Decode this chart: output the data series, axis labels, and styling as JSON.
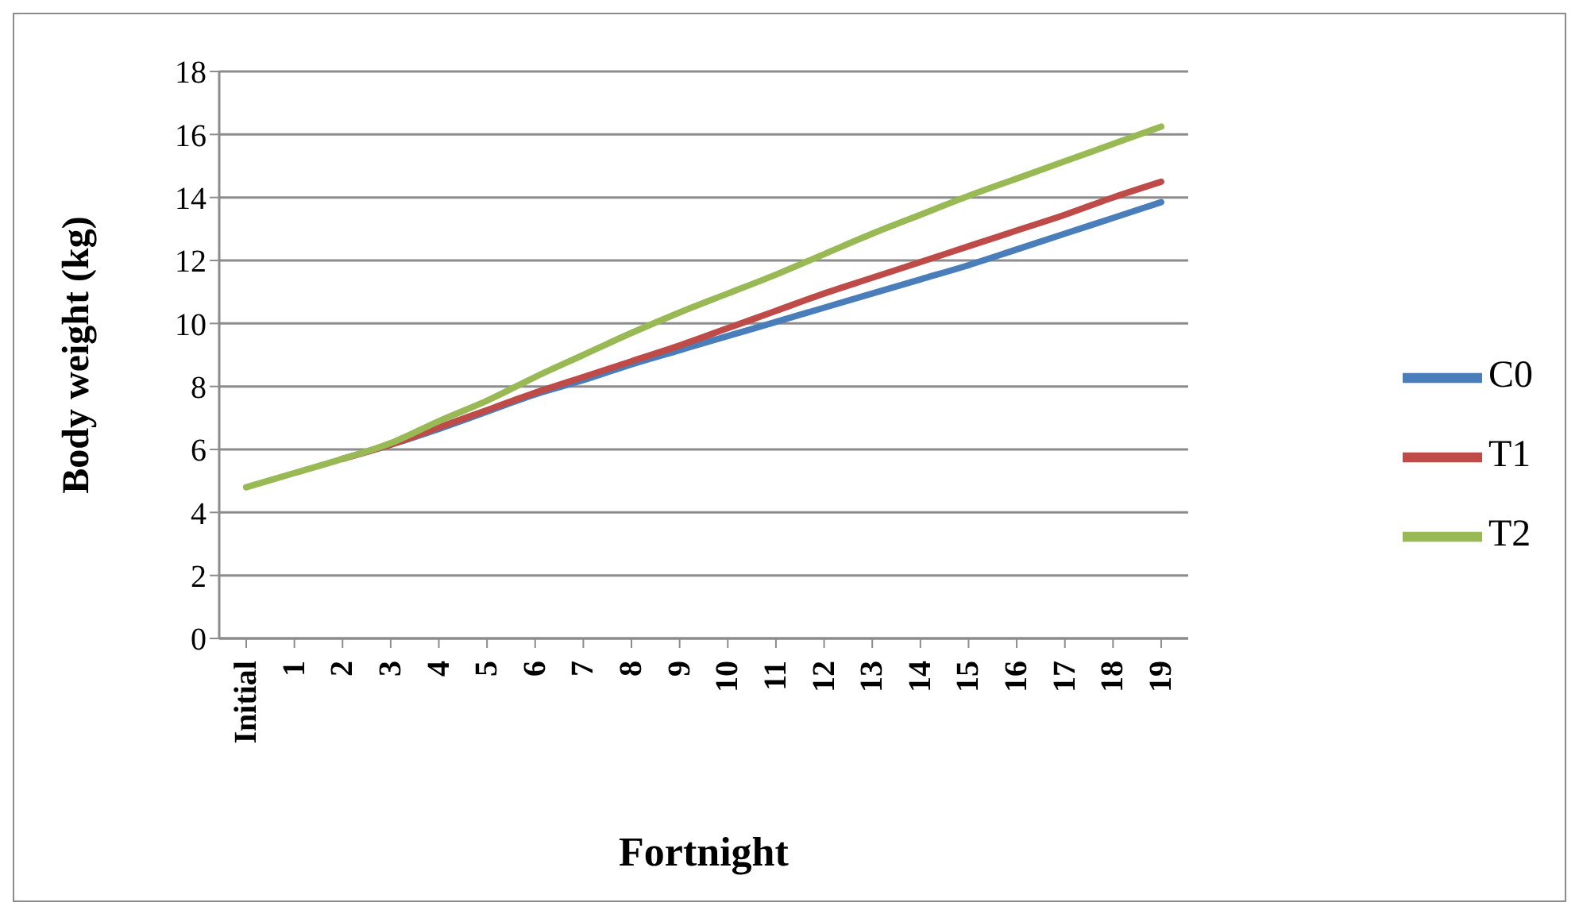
{
  "chart_data": {
    "type": "line",
    "xlabel": "Fortnight",
    "ylabel": "Body weight (kg)",
    "categories": [
      "Initial",
      "1",
      "2",
      "3",
      "4",
      "5",
      "6",
      "7",
      "8",
      "9",
      "10",
      "11",
      "12",
      "13",
      "14",
      "15",
      "16",
      "17",
      "18",
      "19"
    ],
    "series": [
      {
        "name": "C0",
        "color": "#4a7ebb",
        "values": [
          null,
          null,
          5.7,
          6.15,
          6.65,
          7.2,
          7.75,
          8.2,
          8.7,
          9.15,
          9.6,
          10.05,
          10.5,
          10.95,
          11.4,
          11.85,
          12.35,
          12.85,
          13.35,
          13.85
        ]
      },
      {
        "name": "T1",
        "color": "#be4b48",
        "values": [
          null,
          null,
          5.7,
          6.15,
          6.7,
          7.25,
          7.8,
          8.3,
          8.8,
          9.3,
          9.85,
          10.4,
          10.95,
          11.45,
          11.95,
          12.45,
          12.95,
          13.45,
          14.0,
          14.5
        ]
      },
      {
        "name": "T2",
        "color": "#98b954",
        "values": [
          4.8,
          5.25,
          5.7,
          6.2,
          6.9,
          7.55,
          8.3,
          9.0,
          9.7,
          10.35,
          10.95,
          11.55,
          12.2,
          12.85,
          13.45,
          14.05,
          14.6,
          15.15,
          15.7,
          16.25
        ]
      }
    ],
    "ylim": [
      0,
      18
    ],
    "yticks": [
      0,
      2,
      4,
      6,
      8,
      10,
      12,
      14,
      16,
      18
    ],
    "grid": "y",
    "legend": "right",
    "marker": "none",
    "line_style": "solid"
  }
}
